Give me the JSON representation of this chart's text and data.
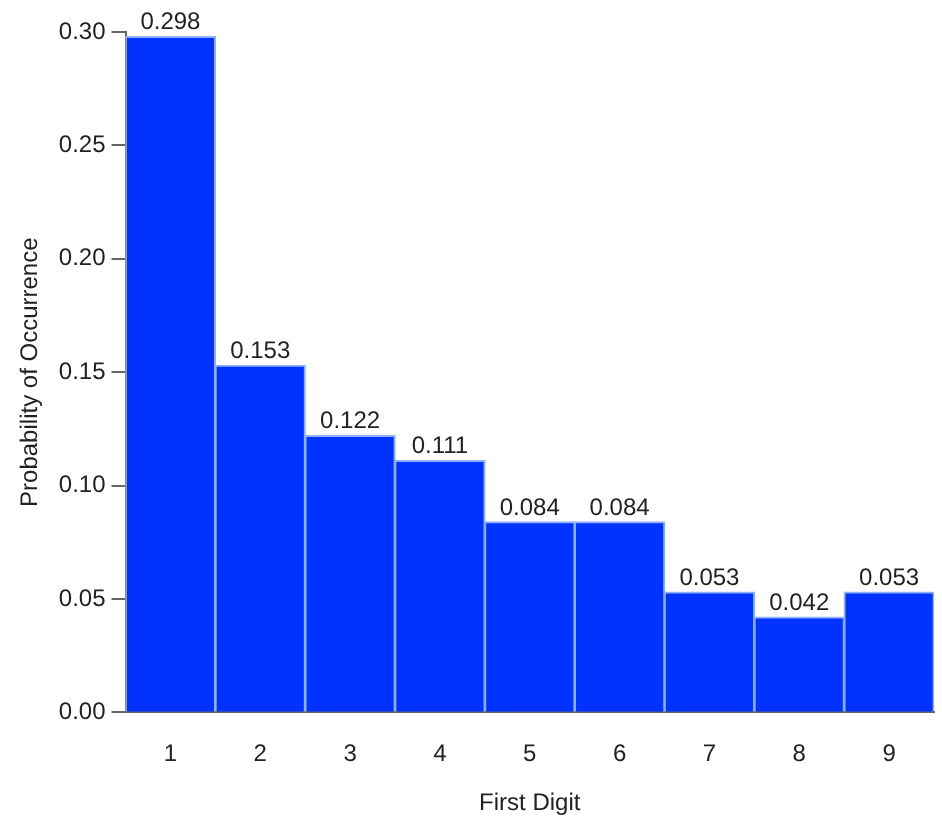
{
  "chart_data": {
    "type": "bar",
    "xlabel": "First Digit",
    "ylabel": "Probability of Occurrence",
    "categories": [
      "1",
      "2",
      "3",
      "4",
      "5",
      "6",
      "7",
      "8",
      "9"
    ],
    "values": [
      0.298,
      0.153,
      0.122,
      0.111,
      0.084,
      0.084,
      0.053,
      0.042,
      0.053
    ],
    "color": "#0033ff",
    "ylim": [
      0,
      0.3
    ],
    "yticks": [
      {
        "value": 0,
        "label": "0.00"
      },
      {
        "value": 0.05,
        "label": "0.05"
      },
      {
        "value": 0.1,
        "label": "0.10"
      },
      {
        "value": 0.15,
        "label": "0.15"
      },
      {
        "value": 0.2,
        "label": "0.20"
      },
      {
        "value": 0.25,
        "label": "0.25"
      },
      {
        "value": 0.3,
        "label": "0.30"
      }
    ],
    "data_labels": true,
    "grid": false,
    "legend": false
  }
}
